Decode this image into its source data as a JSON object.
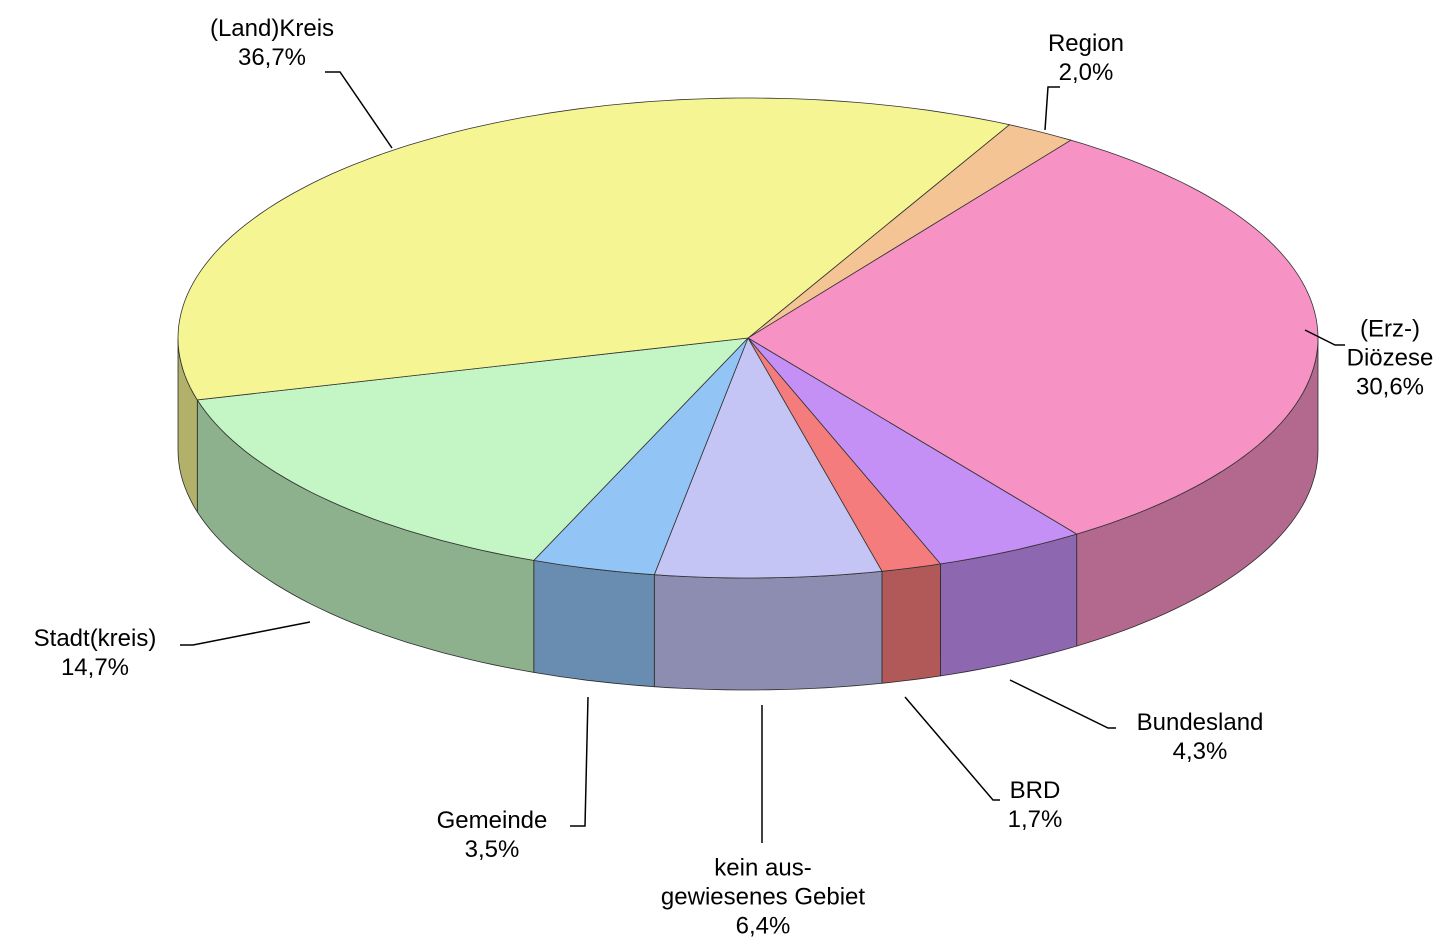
{
  "chart_data": {
    "type": "pie",
    "categories": [
      "Region",
      "(Erz-)\nDiözese",
      "Bundesland",
      "BRD",
      "kein aus-\ngewiesenes Gebiet",
      "Gemeinde",
      "Stadt(kreis)",
      "(Land)Kreis"
    ],
    "values": [
      2.0,
      30.6,
      4.3,
      1.7,
      6.4,
      3.5,
      14.7,
      36.7
    ],
    "value_labels": [
      "2,0%",
      "30,6%",
      "4,3%",
      "1,7%",
      "6,4%",
      "3,5%",
      "14,7%",
      "36,7%"
    ],
    "colors": [
      "#f5c495",
      "#f792c4",
      "#c490f5",
      "#f57c7c",
      "#c4c4f5",
      "#92c4f5",
      "#c4f5c4",
      "#f5f594"
    ]
  }
}
